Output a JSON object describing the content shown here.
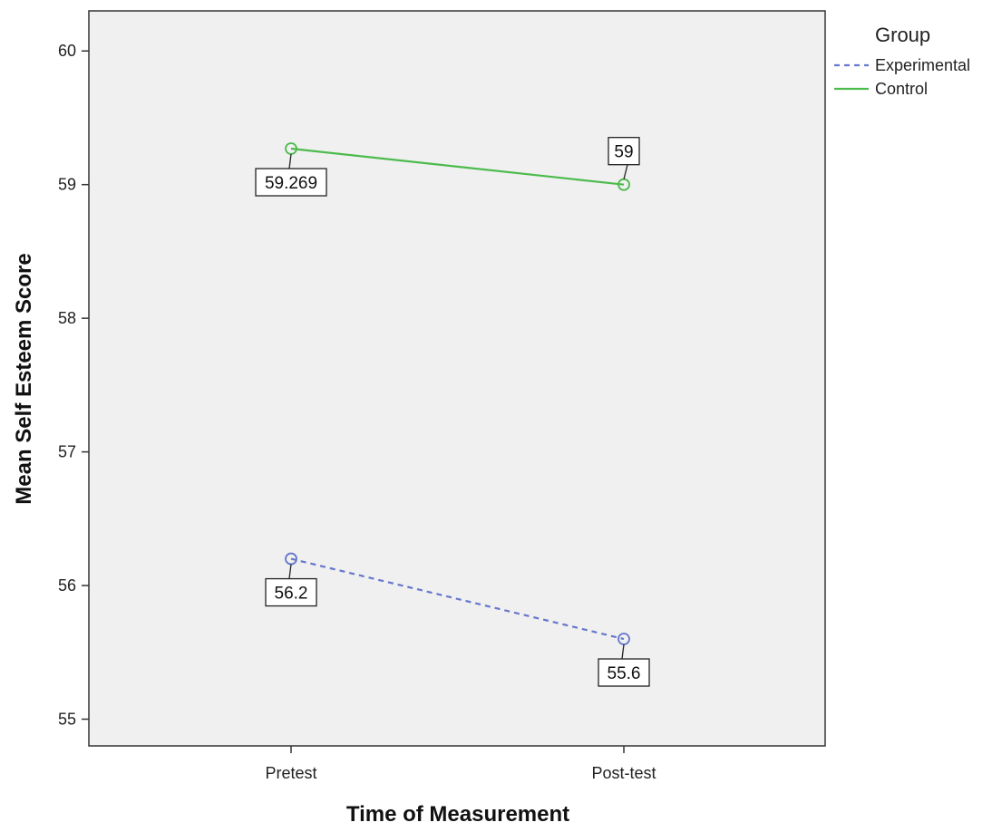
{
  "chart_data": {
    "type": "line",
    "categories": [
      "Pretest",
      "Post-test"
    ],
    "series": [
      {
        "name": "Experimental",
        "values": [
          56.2,
          55.6
        ],
        "labels": [
          "56.2",
          "55.6"
        ],
        "color": "#6677cc",
        "dash": "dashed"
      },
      {
        "name": "Control",
        "values": [
          59.269,
          59
        ],
        "labels": [
          "59.269",
          "59"
        ],
        "color": "#4cbb4c",
        "dash": "solid"
      }
    ],
    "xlabel": "Time of Measurement",
    "ylabel": "Mean Self Esteem Score",
    "ylim": [
      54.8,
      60.3
    ],
    "yticks": [
      "55",
      "56",
      "57",
      "58",
      "59",
      "60"
    ],
    "legend_title": "Group",
    "legend_position": "top-right",
    "background": "#f0f0f0",
    "grid": false
  }
}
